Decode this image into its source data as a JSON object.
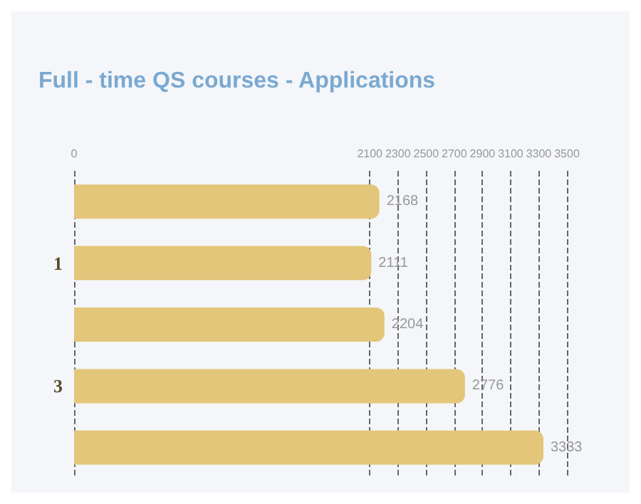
{
  "chart_data": {
    "type": "bar",
    "orientation": "horizontal",
    "title": "Full - time QS courses - Applications",
    "categories": [
      null,
      "1",
      null,
      "3",
      null
    ],
    "values": [
      2168,
      2111,
      2204,
      2776,
      3333
    ],
    "color": "#e3c679",
    "xlim": [
      0,
      3500
    ],
    "xticks": [
      0,
      2100,
      2300,
      2500,
      2700,
      2900,
      3100,
      3300,
      3500
    ],
    "grid": "x",
    "data_labels": true
  }
}
